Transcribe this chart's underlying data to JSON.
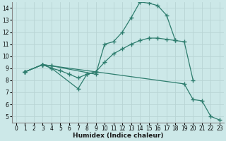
{
  "bg_color": "#cce8e8",
  "grid_color": "#b8d4d4",
  "line_color": "#2e7d6e",
  "line_width": 0.9,
  "marker": "+",
  "marker_size": 4,
  "marker_ew": 1.0,
  "xlim": [
    -0.5,
    23.5
  ],
  "ylim": [
    4.5,
    14.5
  ],
  "xticks": [
    0,
    1,
    2,
    3,
    4,
    5,
    6,
    7,
    8,
    9,
    10,
    11,
    12,
    13,
    14,
    15,
    16,
    17,
    18,
    19,
    20,
    21,
    22,
    23
  ],
  "yticks": [
    5,
    6,
    7,
    8,
    9,
    10,
    11,
    12,
    13,
    14
  ],
  "xlabel": "Humidex (Indice chaleur)",
  "xlabel_fontsize": 6.5,
  "tick_fontsize": 5.5,
  "lines": [
    {
      "x": [
        1,
        3,
        4,
        9,
        10,
        11,
        12,
        13,
        14,
        15,
        16,
        17,
        18
      ],
      "y": [
        8.7,
        9.3,
        9.2,
        8.5,
        11.0,
        11.2,
        12.0,
        13.2,
        14.5,
        14.4,
        14.2,
        13.4,
        11.3
      ]
    },
    {
      "x": [
        1,
        3,
        4,
        9,
        10,
        11,
        12,
        13,
        14,
        15,
        16,
        17,
        18,
        19,
        20
      ],
      "y": [
        8.7,
        9.3,
        9.2,
        8.7,
        9.5,
        10.2,
        10.6,
        11.0,
        11.3,
        11.5,
        11.5,
        11.4,
        11.3,
        11.2,
        8.0
      ]
    },
    {
      "x": [
        1,
        3,
        4,
        7,
        8,
        9,
        19,
        20,
        21,
        22,
        23
      ],
      "y": [
        8.7,
        9.3,
        9.0,
        7.3,
        8.5,
        8.7,
        7.7,
        6.4,
        6.3,
        5.0,
        4.7
      ]
    },
    {
      "x": [
        1,
        3,
        4,
        5,
        6,
        7,
        8,
        9
      ],
      "y": [
        8.7,
        9.3,
        9.0,
        8.8,
        8.5,
        8.2,
        8.5,
        8.7
      ]
    }
  ]
}
